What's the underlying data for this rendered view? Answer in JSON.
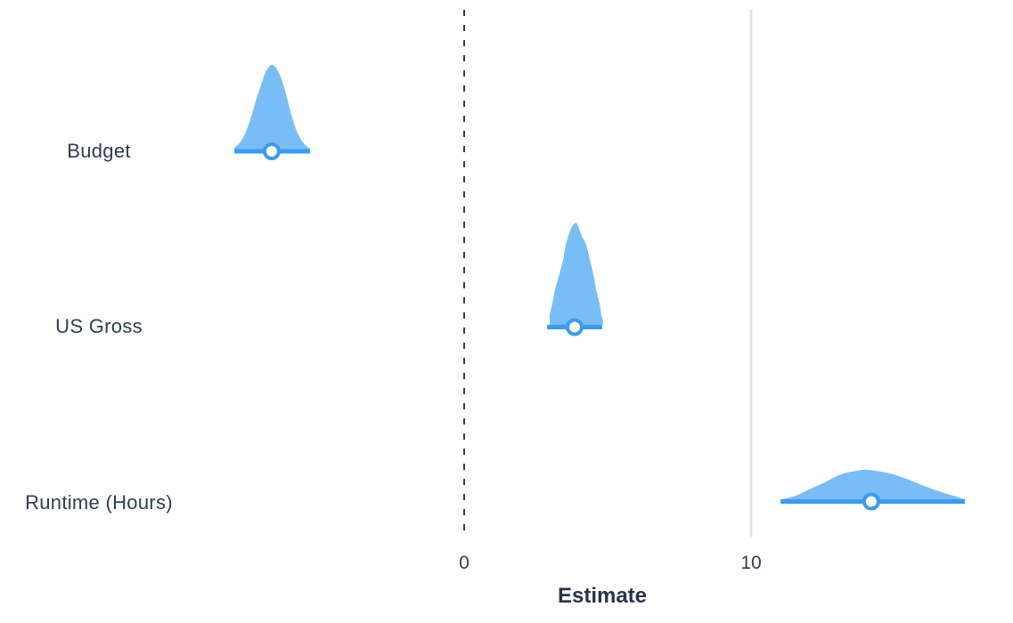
{
  "chart_data": {
    "type": "halfeye-interval",
    "xlabel": "Estimate",
    "x_ticks": [
      {
        "value": 0,
        "label": "0"
      },
      {
        "value": 10,
        "label": "10"
      }
    ],
    "reference_line": {
      "value": 0,
      "style": "dashed"
    },
    "grid_line": {
      "value": 10,
      "style": "solid"
    },
    "rows": [
      {
        "label": "Budget",
        "point_estimate": -6.71,
        "interval": [
          -8.01,
          -5.37
        ],
        "peak_density_rel": 0.83,
        "density": [
          [
            -8.01,
            0.02
          ],
          [
            -7.86,
            0.06
          ],
          [
            -7.7,
            0.14
          ],
          [
            -7.55,
            0.26
          ],
          [
            -7.39,
            0.42
          ],
          [
            -7.24,
            0.6
          ],
          [
            -7.08,
            0.76
          ],
          [
            -6.93,
            0.91
          ],
          [
            -6.78,
            0.985
          ],
          [
            -6.71,
            1.0
          ],
          [
            -6.64,
            0.99
          ],
          [
            -6.55,
            0.96
          ],
          [
            -6.4,
            0.86
          ],
          [
            -6.24,
            0.69
          ],
          [
            -6.09,
            0.49
          ],
          [
            -5.93,
            0.3
          ],
          [
            -5.78,
            0.17
          ],
          [
            -5.62,
            0.08
          ],
          [
            -5.47,
            0.03
          ],
          [
            -5.37,
            0.0
          ]
        ]
      },
      {
        "label": "US Gross",
        "point_estimate": 3.85,
        "interval": [
          2.89,
          4.81
        ],
        "peak_density_rel": 1.0,
        "density": [
          [
            2.98,
            0.1
          ],
          [
            3.07,
            0.21
          ],
          [
            3.17,
            0.35
          ],
          [
            3.32,
            0.5
          ],
          [
            3.45,
            0.645
          ],
          [
            3.54,
            0.79
          ],
          [
            3.63,
            0.875
          ],
          [
            3.73,
            0.955
          ],
          [
            3.85,
            1.0
          ],
          [
            3.94,
            0.995
          ],
          [
            4.1,
            0.875
          ],
          [
            4.25,
            0.79
          ],
          [
            4.38,
            0.645
          ],
          [
            4.5,
            0.5
          ],
          [
            4.6,
            0.35
          ],
          [
            4.72,
            0.21
          ],
          [
            4.78,
            0.1
          ],
          [
            4.84,
            0.05
          ]
        ]
      },
      {
        "label": "Runtime (Hours)",
        "point_estimate": 14.19,
        "interval": [
          11.03,
          17.45
        ],
        "peak_density_rel": 0.29,
        "density": [
          [
            11.06,
            0.0
          ],
          [
            11.55,
            0.12
          ],
          [
            12.08,
            0.36
          ],
          [
            12.61,
            0.6
          ],
          [
            13.11,
            0.84
          ],
          [
            13.63,
            0.96
          ],
          [
            14.01,
            1.0
          ],
          [
            14.57,
            0.93
          ],
          [
            15.09,
            0.81
          ],
          [
            15.59,
            0.63
          ],
          [
            16.12,
            0.42
          ],
          [
            16.65,
            0.24
          ],
          [
            17.05,
            0.12
          ],
          [
            17.45,
            0.0
          ]
        ]
      }
    ],
    "colors": {
      "density_fill": "#79BDF7",
      "accent": "#3A9BF0",
      "text": "#2E3D57",
      "reference_line": "#3C3C3C",
      "grid_line": "#E3E3E3",
      "background": "#FFFFFF"
    }
  }
}
